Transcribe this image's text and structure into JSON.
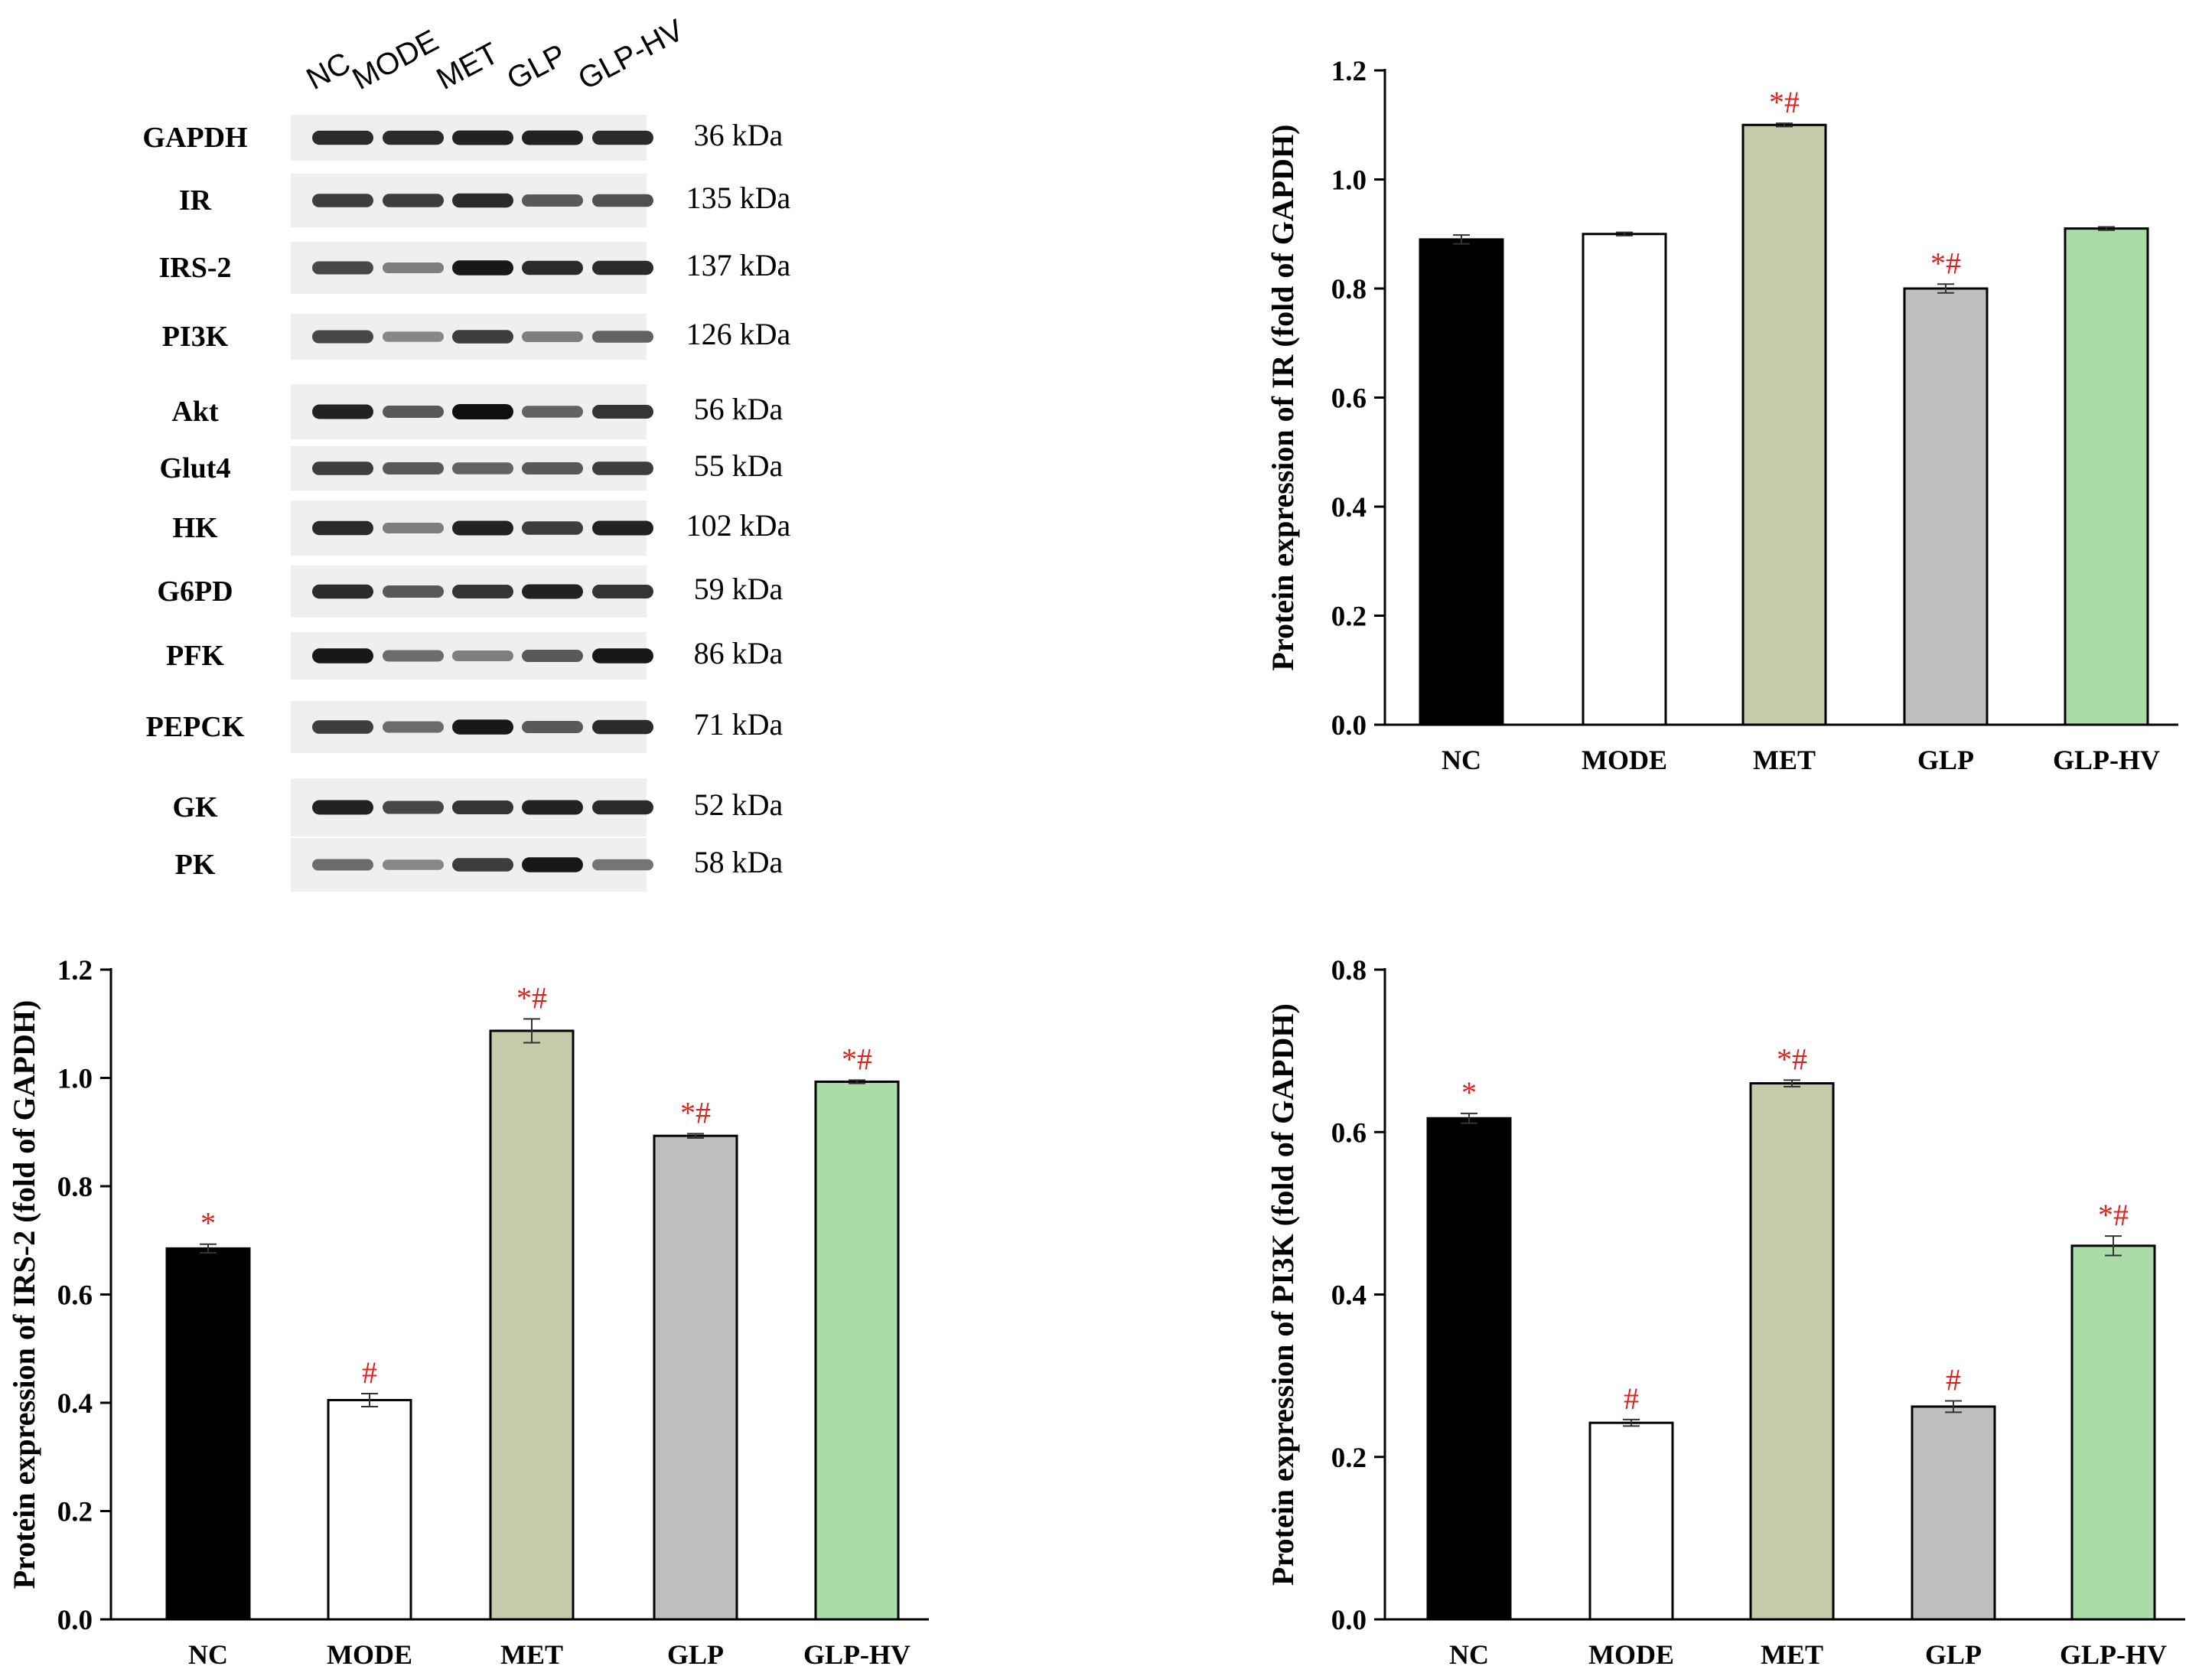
{
  "western_blot": {
    "lanes": [
      "NC",
      "MODE",
      "MET",
      "GLP",
      "GLP-HV"
    ],
    "proteins": [
      {
        "name": "GAPDH",
        "kda": "36 kDa",
        "intensity": [
          0.85,
          0.85,
          0.9,
          0.9,
          0.85
        ]
      },
      {
        "name": "IR",
        "kda": "135 kDa",
        "intensity": [
          0.75,
          0.75,
          0.85,
          0.6,
          0.65
        ]
      },
      {
        "name": "IRS-2",
        "kda": "137 kDa",
        "intensity": [
          0.7,
          0.4,
          0.95,
          0.85,
          0.85
        ]
      },
      {
        "name": "PI3K",
        "kda": "126 kDa",
        "intensity": [
          0.7,
          0.35,
          0.75,
          0.4,
          0.55
        ]
      },
      {
        "name": "Akt",
        "kda": "56 kDa",
        "intensity": [
          0.9,
          0.6,
          1.0,
          0.55,
          0.8
        ]
      },
      {
        "name": "Glut4",
        "kda": "55 kDa",
        "intensity": [
          0.75,
          0.6,
          0.55,
          0.6,
          0.75
        ]
      },
      {
        "name": "HK",
        "kda": "102 kDa",
        "intensity": [
          0.85,
          0.4,
          0.9,
          0.75,
          0.9
        ]
      },
      {
        "name": "G6PD",
        "kda": "59 kDa",
        "intensity": [
          0.85,
          0.6,
          0.8,
          0.9,
          0.8
        ]
      },
      {
        "name": "PFK",
        "kda": "86 kDa",
        "intensity": [
          0.95,
          0.5,
          0.4,
          0.6,
          0.95
        ]
      },
      {
        "name": "PEPCK",
        "kda": "71 kDa",
        "intensity": [
          0.75,
          0.5,
          0.95,
          0.6,
          0.85
        ]
      },
      {
        "name": "GK",
        "kda": "52 kDa",
        "intensity": [
          0.9,
          0.7,
          0.8,
          0.9,
          0.85
        ]
      },
      {
        "name": "PK",
        "kda": "58 kDa",
        "intensity": [
          0.5,
          0.35,
          0.75,
          0.95,
          0.45
        ]
      }
    ]
  },
  "colors": {
    "NC": "#000000",
    "MODE": "#ffffff",
    "MET": "#c7c9ab",
    "GLP": "#bfbfbf",
    "GLP-HV": "#a9dca6",
    "significance": "#e0201c",
    "axis": "#000000"
  },
  "chart_data": [
    {
      "type": "bar",
      "ylabel": "Protein expression of IR (fold of GAPDH)",
      "categories": [
        "NC",
        "MODE",
        "MET",
        "GLP",
        "GLP-HV"
      ],
      "values": [
        0.89,
        0.9,
        1.1,
        0.8,
        0.91
      ],
      "errors": [
        0.008,
        0.003,
        0.003,
        0.008,
        0.003
      ],
      "annotations": [
        "",
        "",
        "*#",
        "*#",
        ""
      ],
      "ylim": [
        0,
        1.2
      ],
      "yticks": [
        "0.0",
        "0.2",
        "0.4",
        "0.6",
        "0.8",
        "1.0",
        "1.2"
      ]
    },
    {
      "type": "bar",
      "ylabel": "Protein expression of IRS-2 (fold of GAPDH)",
      "categories": [
        "NC",
        "MODE",
        "MET",
        "GLP",
        "GLP-HV"
      ],
      "values": [
        0.685,
        0.405,
        1.087,
        0.893,
        0.993
      ],
      "errors": [
        0.008,
        0.012,
        0.022,
        0.004,
        0.003
      ],
      "annotations": [
        "*",
        "#",
        "*#",
        "*#",
        "*#"
      ],
      "ylim": [
        0,
        1.2
      ],
      "yticks": [
        "0.0",
        "0.2",
        "0.4",
        "0.6",
        "0.8",
        "1.0",
        "1.2"
      ]
    },
    {
      "type": "bar",
      "ylabel": "Protein expression of PI3K (fold of GAPDH)",
      "categories": [
        "NC",
        "MODE",
        "MET",
        "GLP",
        "GLP-HV"
      ],
      "values": [
        0.617,
        0.242,
        0.66,
        0.262,
        0.46
      ],
      "errors": [
        0.006,
        0.004,
        0.004,
        0.007,
        0.012
      ],
      "annotations": [
        "*",
        "#",
        "*#",
        "#",
        "*#"
      ],
      "ylim": [
        0,
        0.8
      ],
      "yticks": [
        "0.0",
        "0.2",
        "0.4",
        "0.6",
        "0.8"
      ]
    }
  ]
}
